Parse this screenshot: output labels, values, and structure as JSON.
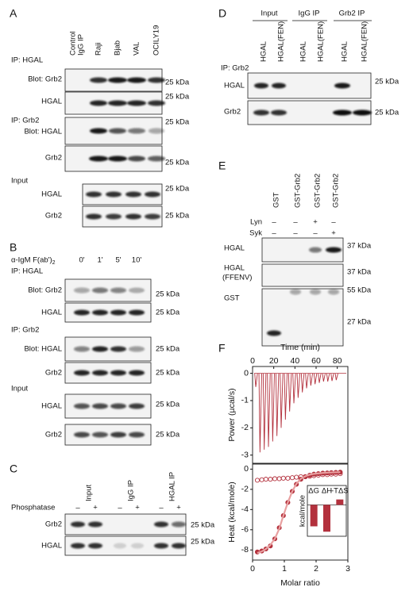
{
  "figure": {
    "panel_a": {
      "letter": "A",
      "control_lane": [
        "Control",
        "IgG IP"
      ],
      "lanes": [
        "Raji",
        "Bjab",
        "VAL",
        "OCILY19"
      ],
      "ip_hgal": "IP: HGAL",
      "ip_grb2": "IP: Grb2",
      "input": "Input",
      "rows": [
        "Blot: Grb2",
        "HGAL",
        "Blot: HGAL",
        "Grb2",
        "HGAL",
        "Grb2"
      ],
      "marker": "25 kDa"
    },
    "panel_b": {
      "letter": "B",
      "stimulus": "α-IgM F(ab')",
      "stimulus_sub": "2",
      "timepoints": [
        "0'",
        "1'",
        "5'",
        "10'"
      ],
      "ip_hgal": "IP: HGAL",
      "ip_grb2": "IP: Grb2",
      "input": "Input",
      "rows": [
        "Blot: Grb2",
        "HGAL",
        "Blot: HGAL",
        "Grb2",
        "HGAL",
        "Grb2"
      ],
      "marker": "25 kDa"
    },
    "panel_c": {
      "letter": "C",
      "lanes": [
        "Input",
        "IgG IP",
        "HGAL IP"
      ],
      "treatment": "Phosphatase",
      "signs": [
        "–",
        "+",
        "–",
        "+",
        "–",
        "+"
      ],
      "rows": [
        "Grb2",
        "HGAL"
      ],
      "marker": "25 kDa"
    },
    "panel_d": {
      "letter": "D",
      "groups": [
        "Input",
        "IgG IP",
        "Grb2 IP"
      ],
      "lanes": [
        "HGAL",
        "HGAL(FEN)",
        "HGAL",
        "HGAL(FEN)",
        "HGAL",
        "HGAL(FEN)"
      ],
      "ip": "IP: Grb2",
      "rows": [
        "HGAL",
        "Grb2"
      ],
      "marker": "25 kDa"
    },
    "panel_e": {
      "letter": "E",
      "lanes": [
        "GST",
        "GST-Grb2",
        "GST-Grb2",
        "GST-Grb2"
      ],
      "treatments": [
        {
          "name": "Lyn",
          "signs": [
            "–",
            "–",
            "+",
            "–"
          ]
        },
        {
          "name": "Syk",
          "signs": [
            "–",
            "–",
            "–",
            "+"
          ]
        }
      ],
      "rows": [
        [
          "HGAL"
        ],
        [
          "HGAL",
          "(FFENV)"
        ],
        [
          "GST"
        ]
      ],
      "markers": [
        "37 kDa",
        "37 kDa",
        "55 kDa",
        "27 kDa"
      ]
    },
    "panel_f": {
      "letter": "F"
    }
  },
  "chart_data": [
    {
      "type": "spikes",
      "xlabel": "Time (min)",
      "ylabel": "Power (µcal/s)",
      "color": "#b3313d",
      "x": [
        3,
        7,
        11,
        15,
        19,
        23,
        27,
        31,
        35,
        39,
        43,
        47,
        51,
        55,
        59,
        63,
        67,
        71,
        75,
        79
      ],
      "values": [
        -0.5,
        -2.9,
        -2.8,
        -2.7,
        -2.5,
        -2.3,
        -2.0,
        -1.7,
        -1.4,
        -1.1,
        -0.9,
        -0.7,
        -0.55,
        -0.45,
        -0.4,
        -0.35,
        -0.3,
        -0.3,
        -0.28,
        -0.25
      ],
      "xlim": [
        0,
        90
      ],
      "xticks": [
        0,
        20,
        40,
        60,
        80
      ],
      "ylim": [
        -3.3,
        0.25
      ],
      "yticks": [
        0,
        -1,
        -2,
        -3
      ]
    },
    {
      "type": "scatter",
      "xlabel": "Molar ratio",
      "ylabel": "Heat (kcal/mole)",
      "x": [
        0.15,
        0.29,
        0.42,
        0.56,
        0.7,
        0.84,
        0.97,
        1.11,
        1.25,
        1.38,
        1.52,
        1.66,
        1.8,
        1.93,
        2.07,
        2.21,
        2.35,
        2.48,
        2.62,
        2.76
      ],
      "series": [
        {
          "marker": "filled",
          "color": "#b3313d",
          "values": [
            -8.2,
            -8.1,
            -7.9,
            -7.6,
            -6.9,
            -5.8,
            -4.6,
            -3.3,
            -2.2,
            -1.5,
            -1.0,
            -0.75,
            -0.6,
            -0.5,
            -0.45,
            -0.4,
            -0.38,
            -0.35,
            -0.33,
            -0.3
          ]
        },
        {
          "marker": "open",
          "color": "#b3313d",
          "values": [
            -1.1,
            -1.05,
            -1.0,
            -1.0,
            -0.95,
            -0.95,
            -0.9,
            -0.9,
            -0.85,
            -0.8,
            -0.75,
            -0.75,
            -0.7,
            -0.65,
            -0.6,
            -0.55,
            -0.55,
            -0.5,
            -0.5,
            -0.45
          ]
        },
        {
          "marker": "line",
          "color": "#e8a0a0",
          "values": [
            -8.3,
            -8.15,
            -7.9,
            -7.5,
            -6.9,
            -5.9,
            -4.6,
            -3.3,
            -2.2,
            -1.45,
            -0.95,
            -0.7,
            -0.55,
            -0.47,
            -0.42,
            -0.38,
            -0.35,
            -0.33,
            -0.31,
            -0.3
          ]
        }
      ],
      "xlim": [
        0,
        3
      ],
      "xticks": [
        0,
        1,
        2,
        3
      ],
      "ylim": [
        -9,
        0.5
      ],
      "yticks": [
        0,
        -2,
        -4,
        -6,
        -8
      ]
    },
    {
      "type": "bar",
      "ylabel": "kcal/mole",
      "categories": [
        "ΔG",
        "ΔH",
        "-TΔS"
      ],
      "values": [
        -7.2,
        -9.0,
        1.8
      ],
      "color": "#b3313d",
      "ylim": [
        -10,
        2.5
      ]
    }
  ]
}
